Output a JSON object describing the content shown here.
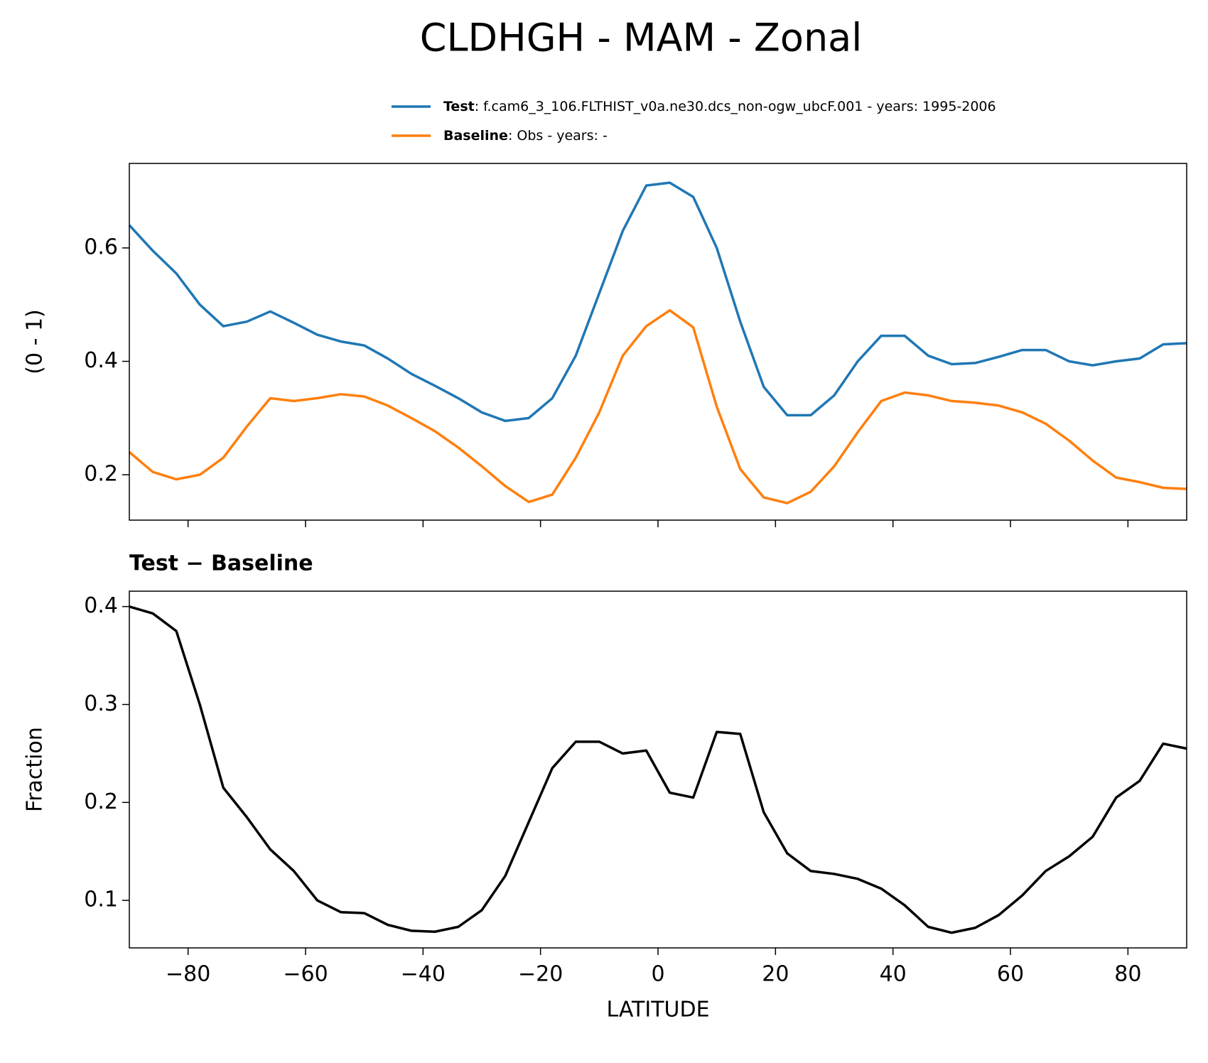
{
  "chart_data": [
    {
      "type": "line",
      "title": "CLDHGH - MAM - Zonal",
      "ylabel": "(0 - 1)",
      "x": [
        -90,
        -86,
        -82,
        -78,
        -74,
        -70,
        -66,
        -62,
        -58,
        -54,
        -50,
        -46,
        -42,
        -38,
        -34,
        -30,
        -26,
        -22,
        -18,
        -14,
        -10,
        -6,
        -2,
        2,
        6,
        10,
        14,
        18,
        22,
        26,
        30,
        34,
        38,
        42,
        46,
        50,
        54,
        58,
        62,
        66,
        70,
        74,
        78,
        82,
        86,
        90
      ],
      "series": [
        {
          "name": "Test",
          "legend_text": ": f.cam6_3_106.FLTHIST_v0a.ne30.dcs_non-ogw_ubcF.001 - years: 1995-2006",
          "color": "#1f77b4",
          "values": [
            0.64,
            0.595,
            0.555,
            0.5,
            0.462,
            0.47,
            0.488,
            0.468,
            0.447,
            0.435,
            0.428,
            0.405,
            0.378,
            0.357,
            0.335,
            0.31,
            0.295,
            0.3,
            0.335,
            0.41,
            0.52,
            0.63,
            0.71,
            0.715,
            0.69,
            0.6,
            0.47,
            0.355,
            0.305,
            0.305,
            0.34,
            0.4,
            0.445,
            0.445,
            0.41,
            0.395,
            0.397,
            0.408,
            0.42,
            0.42,
            0.4,
            0.393,
            0.4,
            0.405,
            0.43,
            0.432
          ]
        },
        {
          "name": "Baseline",
          "legend_text": ": Obs - years: -",
          "color": "#ff7f0e",
          "values": [
            0.24,
            0.205,
            0.192,
            0.2,
            0.23,
            0.285,
            0.335,
            0.33,
            0.335,
            0.342,
            0.338,
            0.322,
            0.3,
            0.277,
            0.248,
            0.215,
            0.18,
            0.152,
            0.165,
            0.23,
            0.31,
            0.41,
            0.462,
            0.49,
            0.46,
            0.32,
            0.21,
            0.16,
            0.15,
            0.17,
            0.215,
            0.275,
            0.33,
            0.345,
            0.34,
            0.33,
            0.327,
            0.322,
            0.31,
            0.29,
            0.26,
            0.225,
            0.195,
            0.187,
            0.177,
            0.175
          ]
        }
      ],
      "xlim": [
        -90,
        90
      ],
      "xticks": [
        -80,
        -60,
        -40,
        -20,
        0,
        20,
        40,
        60,
        80
      ],
      "xtick_labels": false,
      "ylim": [
        0.12,
        0.749
      ],
      "yticks": [
        0.2,
        0.4,
        0.6
      ]
    },
    {
      "type": "line",
      "title": "Test − Baseline",
      "xlabel": "LATITUDE",
      "ylabel": "Fraction",
      "x": [
        -90,
        -86,
        -82,
        -78,
        -74,
        -70,
        -66,
        -62,
        -58,
        -54,
        -50,
        -46,
        -42,
        -38,
        -34,
        -30,
        -26,
        -22,
        -18,
        -14,
        -10,
        -6,
        -2,
        2,
        6,
        10,
        14,
        18,
        22,
        26,
        30,
        34,
        38,
        42,
        46,
        50,
        54,
        58,
        62,
        66,
        70,
        74,
        78,
        82,
        86,
        90
      ],
      "series": [
        {
          "color": "#000000",
          "values": [
            0.4,
            0.393,
            0.375,
            0.3,
            0.215,
            0.185,
            0.152,
            0.13,
            0.1,
            0.088,
            0.087,
            0.075,
            0.069,
            0.068,
            0.073,
            0.09,
            0.125,
            0.18,
            0.235,
            0.262,
            0.262,
            0.25,
            0.253,
            0.21,
            0.205,
            0.272,
            0.27,
            0.19,
            0.148,
            0.13,
            0.127,
            0.122,
            0.112,
            0.095,
            0.073,
            0.067,
            0.072,
            0.085,
            0.105,
            0.13,
            0.145,
            0.165,
            0.205,
            0.222,
            0.26,
            0.255
          ]
        }
      ],
      "xlim": [
        -90,
        90
      ],
      "xticks": [
        {
          "value": -80,
          "label": "−80"
        },
        {
          "value": -60,
          "label": "−60"
        },
        {
          "value": -40,
          "label": "−40"
        },
        {
          "value": -20,
          "label": "−20"
        },
        0,
        20,
        40,
        60,
        80
      ],
      "xtick_labels": true,
      "ylim": [
        0.0515,
        0.4157
      ],
      "yticks": [
        0.1,
        0.2,
        0.3,
        0.4
      ]
    }
  ]
}
